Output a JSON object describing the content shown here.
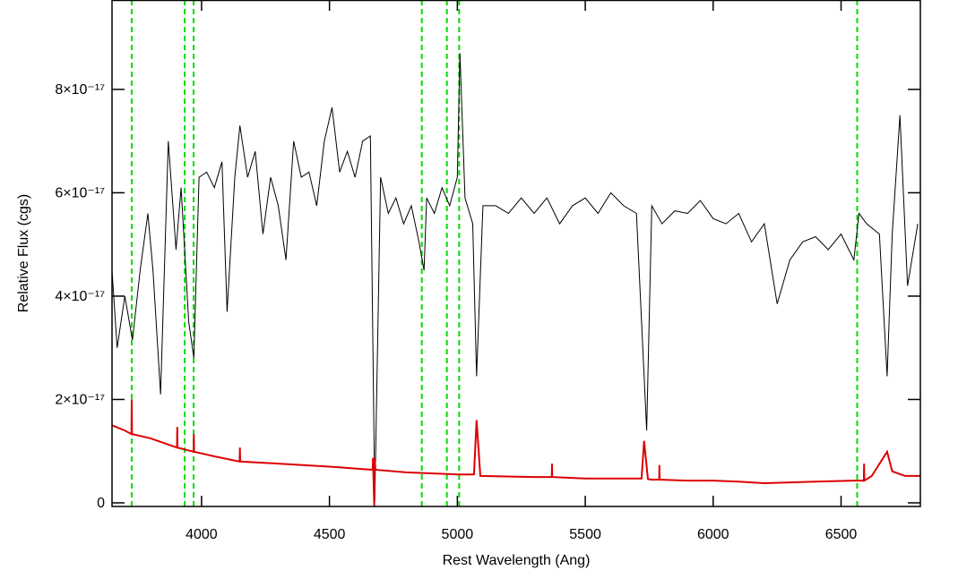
{
  "chart_data": {
    "type": "line",
    "xlabel": "Rest Wavelength (Ang)",
    "ylabel": "Relative Flux (cgs)",
    "xlim": [
      3650,
      6810
    ],
    "ylim": [
      -7e-19,
      9.73e-17
    ],
    "xticks": [
      4000,
      4500,
      5000,
      5500,
      6000,
      6500
    ],
    "yticks": [
      0,
      {
        "value": 2e-17,
        "label": "2×10⁻¹⁷"
      },
      {
        "value": 4e-17,
        "label": "4×10⁻¹⁷"
      },
      {
        "value": 6e-17,
        "label": "6×10⁻¹⁷"
      },
      {
        "value": 8e-17,
        "label": "8×10⁻¹⁷"
      }
    ],
    "vlines": [
      3727,
      3934,
      3969,
      4861,
      4959,
      5007,
      6563
    ],
    "vline_color": "#00dd00",
    "series": [
      {
        "color": "#000000",
        "x": [
          3650,
          3670,
          3700,
          3730,
          3760,
          3790,
          3810,
          3840,
          3870,
          3900,
          3920,
          3950,
          3970,
          3990,
          4020,
          4050,
          4080,
          4100,
          4130,
          4150,
          4180,
          4210,
          4240,
          4270,
          4300,
          4330,
          4360,
          4390,
          4420,
          4450,
          4480,
          4510,
          4540,
          4570,
          4600,
          4630,
          4660,
          4677,
          4700,
          4730,
          4760,
          4790,
          4820,
          4850,
          4870,
          4880,
          4910,
          4940,
          4970,
          5000,
          5010,
          5030,
          5060,
          5075,
          5100,
          5150,
          5200,
          5250,
          5300,
          5350,
          5400,
          5450,
          5500,
          5550,
          5600,
          5650,
          5700,
          5740,
          5760,
          5800,
          5850,
          5900,
          5950,
          6000,
          6050,
          6100,
          6150,
          6200,
          6250,
          6300,
          6350,
          6400,
          6450,
          6500,
          6550,
          6570,
          6600,
          6650,
          6680,
          6700,
          6730,
          6760,
          6800
        ],
        "values": [
          4.5e-17,
          3e-17,
          4e-17,
          3.15e-17,
          4.5e-17,
          5.6e-17,
          4.5e-17,
          2.1e-17,
          7e-17,
          4.9e-17,
          6.1e-17,
          3.5e-17,
          2.8e-17,
          6.3e-17,
          6.4e-17,
          6.1e-17,
          6.6e-17,
          3.7e-17,
          6.3e-17,
          7.3e-17,
          6.3e-17,
          6.8e-17,
          5.2e-17,
          6.3e-17,
          5.75e-17,
          4.7e-17,
          7e-17,
          6.3e-17,
          6.4e-17,
          5.75e-17,
          7e-17,
          7.65e-17,
          6.4e-17,
          6.8e-17,
          6.3e-17,
          7e-17,
          7.1e-17,
          3e-19,
          6.3e-17,
          5.6e-17,
          5.9e-17,
          5.4e-17,
          5.75e-17,
          5.05e-17,
          4.5e-17,
          5.9e-17,
          5.6e-17,
          6.1e-17,
          5.75e-17,
          6.3e-17,
          8.7e-17,
          5.9e-17,
          5.4e-17,
          2.45e-17,
          5.75e-17,
          5.75e-17,
          5.6e-17,
          5.9e-17,
          5.6e-17,
          5.9e-17,
          5.4e-17,
          5.75e-17,
          5.9e-17,
          5.6e-17,
          6e-17,
          5.75e-17,
          5.6e-17,
          1.4e-17,
          5.75e-17,
          5.4e-17,
          5.65e-17,
          5.6e-17,
          5.85e-17,
          5.5e-17,
          5.4e-17,
          5.6e-17,
          5.05e-17,
          5.4e-17,
          3.85e-17,
          4.7e-17,
          5.05e-17,
          5.15e-17,
          4.9e-17,
          5.2e-17,
          4.7e-17,
          5.6e-17,
          5.4e-17,
          5.2e-17,
          2.45e-17,
          5.2e-17,
          7.5e-17,
          4.2e-17,
          5.4e-17
        ]
      },
      {
        "color": "#dd0000",
        "x": [
          3650,
          3700,
          3726,
          3727,
          3728,
          3800,
          3904,
          3905,
          3906,
          3969,
          3970,
          3971,
          4050,
          4149,
          4150,
          4151,
          4300,
          4500,
          4669,
          4670,
          4675,
          4676,
          4680,
          4800,
          5000,
          5065,
          5075,
          5090,
          5300,
          5369,
          5370,
          5371,
          5500,
          5720,
          5730,
          5745,
          5760,
          5789,
          5790,
          5791,
          5900,
          6000,
          6100,
          6200,
          6400,
          6550,
          6589,
          6590,
          6591,
          6620,
          6680,
          6700,
          6750,
          6810
        ],
        "values": [
          1.5e-17,
          1.4e-17,
          1.33e-17,
          2e-17,
          1.33e-17,
          1.25e-17,
          1.07e-17,
          1.47e-17,
          1.07e-17,
          9.9e-18,
          1.33e-17,
          9.9e-18,
          9e-18,
          8e-18,
          1.07e-17,
          8e-18,
          7.6e-18,
          7e-18,
          6.4e-18,
          8.7e-18,
          -7e-19,
          8.7e-18,
          6.4e-18,
          5.9e-18,
          5.5e-18,
          5.5e-18,
          1.6e-17,
          5.2e-18,
          5e-18,
          5e-18,
          7.6e-18,
          5e-18,
          4.7e-18,
          4.7e-18,
          1.2e-17,
          4.6e-18,
          4.5e-18,
          4.5e-18,
          7.3e-18,
          4.5e-18,
          4.3e-18,
          4.3e-18,
          4.1e-18,
          3.8e-18,
          4.1e-18,
          4.3e-18,
          4.3e-18,
          7.6e-18,
          4.3e-18,
          5.2e-18,
          9.9e-18,
          6.1e-18,
          5.2e-18,
          5.2e-18
        ]
      }
    ]
  }
}
